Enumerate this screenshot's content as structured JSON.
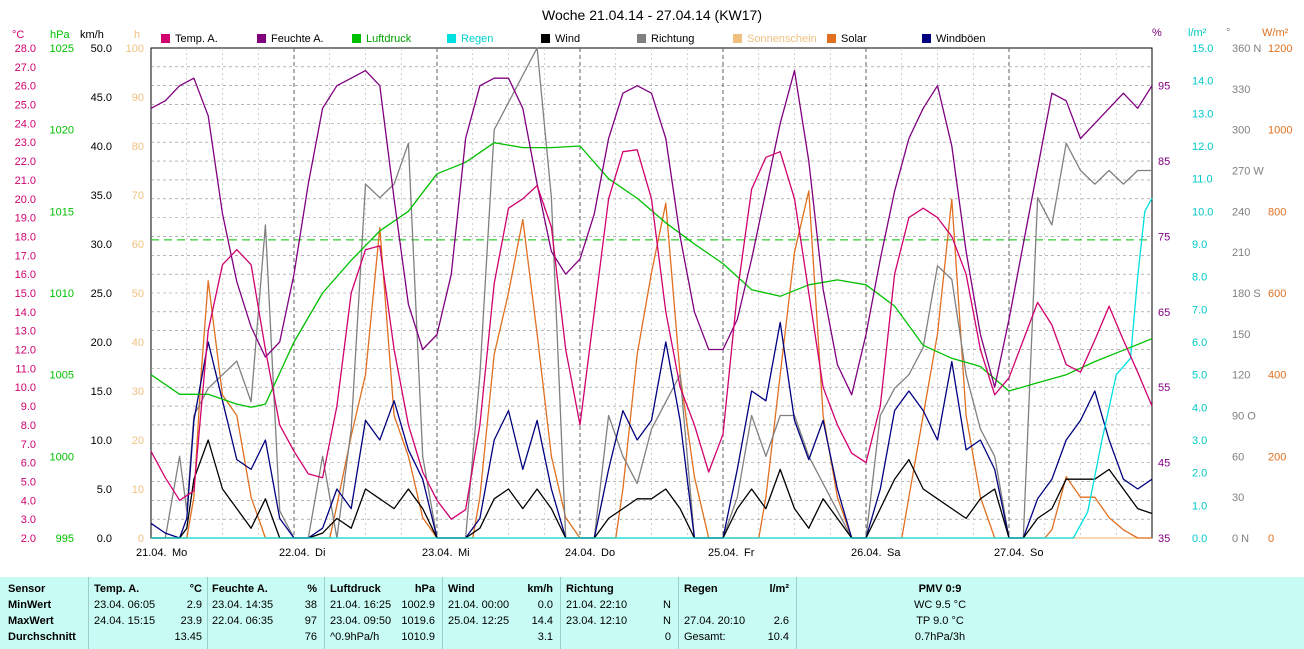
{
  "chart_data": {
    "type": "line",
    "title": "Woche 21.04.14 - 27.04.14 (KW17)",
    "x_days": [
      "21.04.",
      "22.04.",
      "23.04.",
      "24.04.",
      "25.04.",
      "26.04.",
      "27.04."
    ],
    "x_weekdays": [
      "Mo",
      "Di",
      "Mi",
      "Do",
      "Fr",
      "Sa",
      "So"
    ],
    "axes": {
      "temp": {
        "unit": "°C",
        "min": 2.0,
        "max": 28.0,
        "step": 1.0,
        "color": "#d0006f"
      },
      "pressure": {
        "unit": "hPa",
        "min": 995,
        "max": 1025,
        "ticks": [
          995,
          1000,
          1005,
          1010,
          1015,
          1020,
          1025
        ],
        "color": "#00c000"
      },
      "wind": {
        "unit": "km/h",
        "min": 0.0,
        "max": 50.0,
        "step": 5.0,
        "color": "#000000"
      },
      "sunshine": {
        "unit": "h",
        "min": 0,
        "max": 100,
        "step": 10,
        "color": "#f0c080"
      },
      "humidity": {
        "unit": "%",
        "ticks": [
          35,
          45,
          55,
          65,
          75,
          85,
          95
        ],
        "color": "#800080"
      },
      "rain": {
        "unit": "l/m²",
        "min": 0.0,
        "max": 15.0,
        "step": 1.0,
        "color": "#00d0d0"
      },
      "direction": {
        "unit": "°",
        "ticks": [
          "0 N",
          "30",
          "60",
          "90 O",
          "120",
          "150",
          "180 S",
          "210",
          "240",
          "270 W",
          "300",
          "330",
          "360 N"
        ],
        "color": "#808080"
      },
      "solar": {
        "unit": "W/m²",
        "min": 0,
        "max": 1200,
        "step": 200,
        "color": "#e07020"
      }
    },
    "reference_line_pressure_hPa": 1013.25,
    "legend": [
      {
        "name": "Temp. A.",
        "color": "#d0006f"
      },
      {
        "name": "Feuchte A.",
        "color": "#800080"
      },
      {
        "name": "Luftdruck",
        "color": "#00c000"
      },
      {
        "name": "Regen",
        "color": "#00e0e0"
      },
      {
        "name": "Wind",
        "color": "#000000"
      },
      {
        "name": "Richtung",
        "color": "#808080"
      },
      {
        "name": "Sonnenschein",
        "color": "#f0c080"
      },
      {
        "name": "Solar",
        "color": "#e07020"
      },
      {
        "name": "Windböen",
        "color": "#000080"
      }
    ],
    "series": [
      {
        "name": "Temp. A.",
        "color": "#d0006f",
        "axis": "temp",
        "t": [
          0,
          0.1,
          0.2,
          0.3,
          0.4,
          0.5,
          0.6,
          0.7,
          0.8,
          0.9,
          1.0,
          1.1,
          1.2,
          1.3,
          1.4,
          1.5,
          1.6,
          1.7,
          1.8,
          1.9,
          2.0,
          2.1,
          2.2,
          2.3,
          2.4,
          2.5,
          2.6,
          2.7,
          2.8,
          2.9,
          3.0,
          3.1,
          3.2,
          3.3,
          3.4,
          3.5,
          3.6,
          3.7,
          3.8,
          3.9,
          4.0,
          4.1,
          4.2,
          4.3,
          4.4,
          4.5,
          4.6,
          4.7,
          4.8,
          4.9,
          5.0,
          5.1,
          5.2,
          5.3,
          5.4,
          5.5,
          5.6,
          5.7,
          5.8,
          5.9,
          6.0,
          6.1,
          6.2,
          6.3,
          6.4,
          6.5,
          6.6,
          6.7,
          6.8,
          6.9,
          7.0
        ],
        "v": [
          6.6,
          5.2,
          4.0,
          4.5,
          13.0,
          16.5,
          17.3,
          16.5,
          12.0,
          8.0,
          6.6,
          5.4,
          5.2,
          9.0,
          15.0,
          17.3,
          17.5,
          12.0,
          8.0,
          5.5,
          4.0,
          3.0,
          3.5,
          8.0,
          15.5,
          19.5,
          20.0,
          20.7,
          18.5,
          12.0,
          8.0,
          14.0,
          20.0,
          22.5,
          22.6,
          20.0,
          14.0,
          10.0,
          8.0,
          5.5,
          7.5,
          15.0,
          20.5,
          22.2,
          22.5,
          20.0,
          15.0,
          10.0,
          8.0,
          6.5,
          6.0,
          9.0,
          16.0,
          19.0,
          19.5,
          19.0,
          18.0,
          16.0,
          12.0,
          9.6,
          10.5,
          12.5,
          14.5,
          13.3,
          11.2,
          10.8,
          12.5,
          14.3,
          12.5,
          10.8,
          9.0
        ]
      },
      {
        "name": "Feuchte A.",
        "color": "#800080",
        "axis": "humidity",
        "hmin": 35,
        "hmax": 100,
        "t": [
          0,
          0.1,
          0.2,
          0.3,
          0.4,
          0.5,
          0.6,
          0.7,
          0.8,
          0.9,
          1.0,
          1.1,
          1.2,
          1.3,
          1.4,
          1.5,
          1.6,
          1.7,
          1.8,
          1.9,
          2.0,
          2.1,
          2.2,
          2.3,
          2.4,
          2.5,
          2.6,
          2.7,
          2.8,
          2.9,
          3.0,
          3.1,
          3.2,
          3.3,
          3.4,
          3.5,
          3.6,
          3.7,
          3.8,
          3.9,
          4.0,
          4.1,
          4.2,
          4.3,
          4.4,
          4.5,
          4.6,
          4.7,
          4.8,
          4.9,
          5.0,
          5.1,
          5.2,
          5.3,
          5.4,
          5.5,
          5.6,
          5.7,
          5.8,
          5.9,
          6.0,
          6.1,
          6.2,
          6.3,
          6.4,
          6.5,
          6.6,
          6.7,
          6.8,
          6.9,
          7.0
        ],
        "v": [
          92,
          93,
          95,
          96,
          91,
          78,
          69,
          63,
          59,
          61,
          70,
          82,
          92,
          95,
          96,
          97,
          95,
          80,
          66,
          60,
          62,
          70,
          88,
          95,
          96,
          96,
          92,
          82,
          73,
          70,
          72,
          78,
          88,
          94,
          95,
          94,
          88,
          75,
          65,
          60,
          60,
          64,
          72,
          81,
          90,
          97,
          85,
          68,
          58,
          54,
          62,
          72,
          81,
          88,
          92,
          95,
          87,
          73,
          62,
          55,
          64,
          74,
          84,
          94,
          93,
          88,
          90,
          92,
          94,
          92,
          95
        ]
      },
      {
        "name": "Luftdruck",
        "color": "#00c000",
        "axis": "pressure",
        "t": [
          0,
          0.2,
          0.4,
          0.6,
          0.7,
          0.8,
          1.0,
          1.2,
          1.4,
          1.6,
          1.8,
          2.0,
          2.2,
          2.4,
          2.6,
          2.8,
          3.0,
          3.2,
          3.4,
          3.6,
          3.8,
          4.0,
          4.2,
          4.4,
          4.6,
          4.8,
          5.0,
          5.2,
          5.4,
          5.6,
          5.8,
          6.0,
          6.2,
          6.4,
          6.6,
          6.8,
          7.0
        ],
        "v": [
          1005.0,
          1003.8,
          1003.8,
          1003.2,
          1003.0,
          1003.2,
          1007.0,
          1010.0,
          1012.0,
          1013.8,
          1015.0,
          1017.3,
          1018.0,
          1019.2,
          1018.9,
          1018.9,
          1019.0,
          1017.0,
          1015.8,
          1014.3,
          1013.0,
          1011.8,
          1010.2,
          1009.8,
          1010.5,
          1010.8,
          1010.5,
          1009.2,
          1006.8,
          1006.0,
          1005.5,
          1004.0,
          1004.5,
          1005.0,
          1005.8,
          1006.5,
          1007.2
        ]
      },
      {
        "name": "Regen",
        "color": "#00e0e0",
        "axis": "rain",
        "t": [
          0,
          6.45,
          6.55,
          6.65,
          6.75,
          6.85,
          6.9,
          6.95,
          7.0
        ],
        "v": [
          0,
          0,
          0.8,
          3.0,
          5.0,
          5.5,
          8.0,
          10.0,
          10.4
        ]
      },
      {
        "name": "Wind",
        "color": "#000000",
        "axis": "wind",
        "t": [
          0,
          0.1,
          0.2,
          0.25,
          0.3,
          0.4,
          0.5,
          0.6,
          0.7,
          0.8,
          0.9,
          1.0,
          1.1,
          1.2,
          1.3,
          1.4,
          1.5,
          1.6,
          1.7,
          1.8,
          1.9,
          2.0,
          2.1,
          2.2,
          2.3,
          2.4,
          2.5,
          2.6,
          2.7,
          2.8,
          2.9,
          3.0,
          3.1,
          3.2,
          3.3,
          3.4,
          3.5,
          3.6,
          3.7,
          3.8,
          3.9,
          4.0,
          4.1,
          4.2,
          4.3,
          4.4,
          4.5,
          4.6,
          4.7,
          4.8,
          4.9,
          5.0,
          5.1,
          5.2,
          5.3,
          5.4,
          5.5,
          5.6,
          5.7,
          5.8,
          5.9,
          6.0,
          6.1,
          6.2,
          6.3,
          6.4,
          6.5,
          6.6,
          6.7,
          6.8,
          6.9,
          7.0
        ],
        "v": [
          0,
          0,
          0,
          1,
          6,
          10,
          5,
          3,
          1,
          4,
          0,
          0,
          0,
          0.5,
          2,
          1,
          5,
          4,
          3,
          5,
          3,
          0,
          0,
          0,
          1,
          4,
          5,
          3,
          5,
          3,
          0,
          0,
          0,
          2,
          3,
          4,
          4,
          5,
          3,
          0,
          0,
          0,
          3,
          5,
          3,
          7,
          3,
          1,
          4,
          2,
          0,
          0,
          3,
          6,
          8,
          5,
          4,
          3,
          2,
          4,
          5,
          0,
          0,
          2,
          3,
          6,
          6,
          6,
          7,
          5,
          3,
          2.5
        ]
      },
      {
        "name": "Windböen",
        "color": "#000080",
        "axis": "wind",
        "t": [
          0,
          0.1,
          0.2,
          0.25,
          0.3,
          0.4,
          0.5,
          0.6,
          0.7,
          0.8,
          0.9,
          1.0,
          1.1,
          1.2,
          1.3,
          1.4,
          1.5,
          1.6,
          1.7,
          1.8,
          1.9,
          2.0,
          2.1,
          2.2,
          2.3,
          2.4,
          2.5,
          2.6,
          2.7,
          2.8,
          2.9,
          3.0,
          3.1,
          3.2,
          3.3,
          3.4,
          3.5,
          3.6,
          3.7,
          3.8,
          3.9,
          4.0,
          4.1,
          4.2,
          4.3,
          4.4,
          4.5,
          4.6,
          4.7,
          4.8,
          4.9,
          5.0,
          5.1,
          5.2,
          5.3,
          5.4,
          5.5,
          5.6,
          5.7,
          5.8,
          5.9,
          6.0,
          6.1,
          6.2,
          6.3,
          6.4,
          6.5,
          6.6,
          6.7,
          6.8,
          6.9,
          7.0
        ],
        "v": [
          1.5,
          0.5,
          0,
          2,
          12,
          20,
          14,
          8,
          7,
          10,
          2,
          0,
          0,
          1,
          5,
          3,
          12,
          10,
          14,
          9,
          6,
          0,
          0,
          0,
          2,
          10,
          13,
          7,
          12,
          5,
          0,
          0,
          0,
          7,
          13,
          10,
          12,
          20,
          12,
          0,
          0,
          0,
          7,
          15,
          14,
          22,
          12,
          8,
          12,
          5,
          0,
          0,
          5,
          13,
          15,
          13,
          10,
          18,
          9,
          10,
          7,
          0,
          0,
          4,
          6,
          10,
          12,
          15,
          10,
          6,
          5,
          6
        ]
      },
      {
        "name": "Richtung",
        "color": "#808080",
        "axis": "direction",
        "dmax": 360,
        "t": [
          0,
          0.1,
          0.2,
          0.25,
          0.3,
          0.4,
          0.5,
          0.6,
          0.7,
          0.8,
          0.9,
          1.0,
          1.1,
          1.2,
          1.3,
          1.4,
          1.5,
          1.6,
          1.7,
          1.8,
          1.9,
          2.0,
          2.1,
          2.2,
          2.3,
          2.4,
          2.5,
          2.6,
          2.7,
          2.8,
          2.9,
          3.0,
          3.1,
          3.2,
          3.3,
          3.4,
          3.5,
          3.6,
          3.7,
          3.8,
          3.9,
          4.0,
          4.1,
          4.2,
          4.3,
          4.4,
          4.5,
          4.6,
          4.7,
          4.8,
          4.9,
          5.0,
          5.1,
          5.2,
          5.3,
          5.4,
          5.5,
          5.6,
          5.7,
          5.8,
          5.9,
          6.0,
          6.1,
          6.2,
          6.3,
          6.4,
          6.5,
          6.6,
          6.7,
          6.8,
          6.9,
          7.0
        ],
        "v": [
          0,
          0,
          60,
          20,
          90,
          110,
          120,
          130,
          100,
          230,
          20,
          0,
          0,
          60,
          0,
          80,
          260,
          250,
          260,
          290,
          60,
          0,
          0,
          0,
          120,
          300,
          320,
          340,
          360,
          250,
          0,
          0,
          0,
          90,
          60,
          40,
          80,
          100,
          120,
          0,
          0,
          0,
          30,
          90,
          60,
          90,
          90,
          60,
          40,
          20,
          0,
          0,
          90,
          110,
          120,
          140,
          200,
          190,
          120,
          80,
          60,
          0,
          0,
          250,
          230,
          290,
          270,
          260,
          270,
          260,
          270,
          270
        ]
      },
      {
        "name": "Solar",
        "color": "#e07020",
        "axis": "solar",
        "t": [
          0,
          0.25,
          0.3,
          0.35,
          0.4,
          0.5,
          0.6,
          0.7,
          0.8,
          0.9,
          1.0,
          1.25,
          1.3,
          1.4,
          1.5,
          1.6,
          1.7,
          1.8,
          1.9,
          2.0,
          2.25,
          2.3,
          2.4,
          2.5,
          2.6,
          2.7,
          2.8,
          2.9,
          3.0,
          3.25,
          3.3,
          3.4,
          3.5,
          3.6,
          3.7,
          3.8,
          3.9,
          4.0,
          4.25,
          4.3,
          4.4,
          4.5,
          4.6,
          4.7,
          4.8,
          4.9,
          5.0,
          5.25,
          5.3,
          5.4,
          5.5,
          5.6,
          5.7,
          5.8,
          5.9,
          6.0,
          6.25,
          6.3,
          6.4,
          6.5,
          6.6,
          6.7,
          6.8,
          6.9,
          7.0
        ],
        "v": [
          0,
          0,
          100,
          400,
          630,
          350,
          300,
          100,
          0,
          0,
          0,
          0,
          80,
          250,
          400,
          760,
          300,
          200,
          50,
          0,
          0,
          100,
          450,
          600,
          780,
          500,
          200,
          50,
          0,
          0,
          120,
          450,
          650,
          820,
          400,
          150,
          0,
          0,
          0,
          100,
          400,
          700,
          850,
          300,
          100,
          0,
          0,
          0,
          100,
          300,
          500,
          830,
          300,
          100,
          0,
          0,
          0,
          20,
          150,
          100,
          100,
          50,
          20,
          0,
          0
        ]
      },
      {
        "name": "Sonnenschein",
        "color": "#f0c080",
        "axis": "sunshine",
        "t": [
          0,
          7.0
        ],
        "v": [
          0,
          0
        ]
      }
    ]
  },
  "stats": {
    "headers": {
      "sensor": "Sensor",
      "temp": "Temp. A.",
      "temp_unit": "°C",
      "hum": "Feuchte A.",
      "hum_unit": "%",
      "press": "Luftdruck",
      "press_unit": "hPa",
      "wind": "Wind",
      "wind_unit": "km/h",
      "dir": "Richtung",
      "rain": "Regen",
      "rain_unit": "l/m²",
      "pmv": "PMV 0:9"
    },
    "rows": [
      {
        "label": "MinWert",
        "temp_time": "23.04.  06:05",
        "temp_val": "2.9",
        "hum_time": "23.04.  14:35",
        "hum_val": "38",
        "press_time": "21.04.  16:25",
        "press_val": "1002.9",
        "wind_time": "21.04.  00:00",
        "wind_val": "0.0",
        "dir_time": "21.04.  22:10",
        "dir_val": "N",
        "rain_time": "",
        "rain_val": "",
        "pmv": "WC 9.5 °C"
      },
      {
        "label": "MaxWert",
        "temp_time": "24.04.  15:15",
        "temp_val": "23.9",
        "hum_time": "22.04.  06:35",
        "hum_val": "97",
        "press_time": "23.04.  09:50",
        "press_val": "1019.6",
        "wind_time": "25.04.  12:25",
        "wind_val": "14.4",
        "dir_time": "23.04.  12:10",
        "dir_val": "N",
        "rain_time": "27.04.  20:10",
        "rain_val": "2.6",
        "pmv": "TP 9.0 °C"
      },
      {
        "label": "Durchschnitt",
        "temp_time": "",
        "temp_val": "13.45",
        "hum_time": "",
        "hum_val": "76",
        "press_time": "^0.9hPa/h",
        "press_val": "1010.9",
        "wind_time": "",
        "wind_val": "3.1",
        "dir_time": "",
        "dir_val": "0",
        "rain_time": "Gesamt:",
        "rain_val": "10.4",
        "pmv": "0.7hPa/3h"
      }
    ]
  }
}
